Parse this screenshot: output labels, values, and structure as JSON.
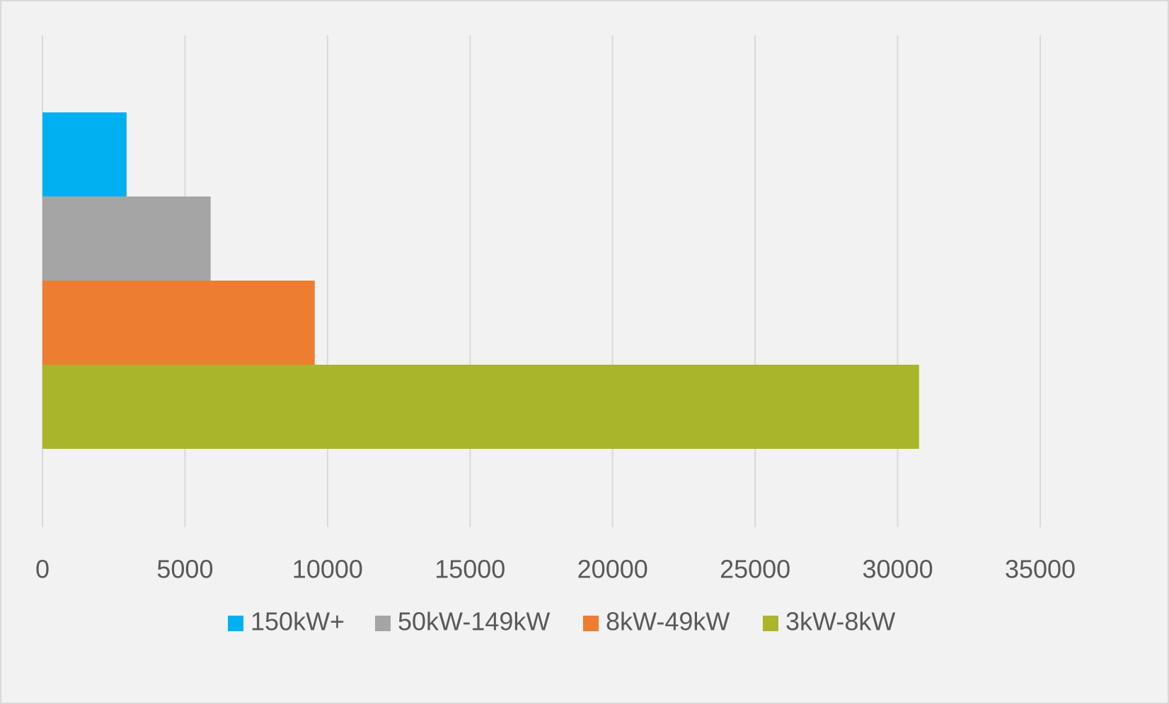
{
  "chart_data": {
    "type": "bar",
    "orientation": "horizontal",
    "series": [
      {
        "name": "150kW+",
        "value": 2950,
        "color": "#00b0f0"
      },
      {
        "name": "50kW-149kW",
        "value": 5900,
        "color": "#a5a5a5"
      },
      {
        "name": "8kW-49kW",
        "value": 9550,
        "color": "#ed7d31"
      },
      {
        "name": "3kW-8kW",
        "value": 30750,
        "color": "#a9b52b"
      }
    ],
    "xlim": [
      0,
      35000
    ],
    "xticks": [
      0,
      5000,
      10000,
      15000,
      20000,
      25000,
      30000,
      35000
    ],
    "grid": true,
    "legend_position": "bottom"
  }
}
